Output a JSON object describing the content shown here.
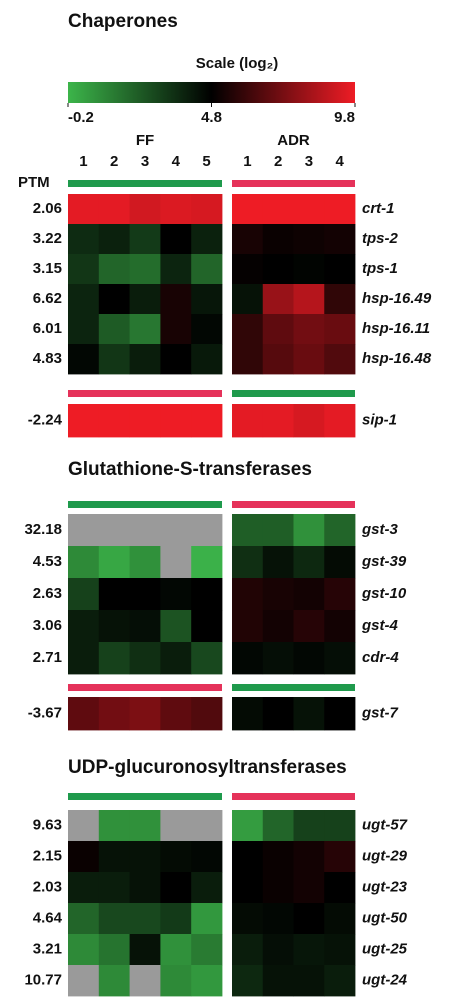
{
  "chart_data": {
    "type": "heatmap",
    "scale": {
      "title": "Scale (log₂)",
      "range": [
        -0.2,
        9.8
      ],
      "ticks": [
        -0.2,
        4.8,
        9.8
      ],
      "colors": [
        "#3cb54a",
        "#000000",
        "#ee1c25"
      ],
      "missing_color": "#9a9a9a"
    },
    "row_header": "PTM",
    "groups": [
      {
        "name": "FF",
        "columns": [
          "1",
          "2",
          "3",
          "4",
          "5"
        ]
      },
      {
        "name": "ADR",
        "columns": [
          "1",
          "2",
          "3",
          "4"
        ]
      }
    ],
    "sections": [
      {
        "title": "Chaperones",
        "blocks": [
          {
            "bar_colors": [
              "#1f9a4c",
              "#e5325a"
            ],
            "rows": [
              {
                "ptm": 2.06,
                "gene": "crt-1",
                "values": [
                  [
                    9.6,
                    9.6,
                    9.2,
                    9.4,
                    9.3
                  ],
                  [
                    9.8,
                    9.8,
                    9.8,
                    9.8
                  ]
                ]
              },
              {
                "ptm": 3.22,
                "gene": "tps-2",
                "values": [
                  [
                    3.6,
                    3.9,
                    3.2,
                    4.8,
                    3.9
                  ],
                  [
                    5.3,
                    5.0,
                    5.1,
                    5.2
                  ]
                ]
              },
              {
                "ptm": 3.15,
                "gene": "tps-1",
                "values": [
                  [
                    3.3,
                    2.0,
                    1.8,
                    3.8,
                    2.0
                  ],
                  [
                    4.9,
                    4.8,
                    4.7,
                    4.8
                  ]
                ]
              },
              {
                "ptm": 6.62,
                "gene": "hsp-16.49",
                "values": [
                  [
                    3.8,
                    4.8,
                    4.0,
                    5.3,
                    4.2
                  ],
                  [
                    4.3,
                    8.0,
                    8.6,
                    5.8
                  ]
                ]
              },
              {
                "ptm": 6.01,
                "gene": "hsp-16.11",
                "values": [
                  [
                    3.8,
                    2.3,
                    1.5,
                    5.3,
                    4.6
                  ],
                  [
                    5.8,
                    6.8,
                    7.2,
                    7.0
                  ]
                ]
              },
              {
                "ptm": 4.83,
                "gene": "hsp-16.48",
                "values": [
                  [
                    4.6,
                    3.3,
                    4.0,
                    4.8,
                    4.1
                  ],
                  [
                    5.8,
                    6.6,
                    7.0,
                    6.5
                  ]
                ]
              }
            ]
          },
          {
            "bar_colors": [
              "#e5325a",
              "#1f9a4c"
            ],
            "rows": [
              {
                "ptm": -2.24,
                "gene": "sip-1",
                "values": [
                  [
                    9.8,
                    9.8,
                    9.8,
                    9.8,
                    9.8
                  ],
                  [
                    9.6,
                    9.6,
                    9.3,
                    9.6
                  ]
                ]
              }
            ]
          }
        ]
      },
      {
        "title": "Glutathione-S-transferases",
        "blocks": [
          {
            "bar_colors": [
              "#1f9a4c",
              "#e5325a"
            ],
            "rows": [
              {
                "ptm": 32.18,
                "gene": "gst-3",
                "values": [
                  [
                    null,
                    null,
                    null,
                    null,
                    null
                  ],
                  [
                    2.2,
                    2.2,
                    0.8,
                    2.0
                  ]
                ]
              },
              {
                "ptm": 4.53,
                "gene": "gst-39",
                "values": [
                  [
                    1.0,
                    0.2,
                    0.8,
                    null,
                    -0.1
                  ],
                  [
                    3.5,
                    4.3,
                    3.7,
                    4.5
                  ]
                ]
              },
              {
                "ptm": 2.63,
                "gene": "gst-10",
                "values": [
                  [
                    3.0,
                    4.8,
                    4.8,
                    4.6,
                    4.8
                  ],
                  [
                    5.5,
                    5.3,
                    5.2,
                    5.6
                  ]
                ]
              },
              {
                "ptm": 3.06,
                "gene": "gst-4",
                "values": [
                  [
                    4.0,
                    4.3,
                    4.4,
                    2.5,
                    4.8
                  ],
                  [
                    5.5,
                    5.2,
                    5.6,
                    5.2
                  ]
                ]
              },
              {
                "ptm": 2.71,
                "gene": "cdr-4",
                "values": [
                  [
                    4.0,
                    3.0,
                    3.5,
                    4.0,
                    2.8
                  ],
                  [
                    4.6,
                    4.4,
                    4.6,
                    4.4
                  ]
                ]
              }
            ]
          },
          {
            "bar_colors": [
              "#e5325a",
              "#1f9a4c"
            ],
            "rows": [
              {
                "ptm": -3.67,
                "gene": "gst-7",
                "values": [
                  [
                    6.8,
                    7.2,
                    7.4,
                    6.8,
                    6.5
                  ],
                  [
                    4.5,
                    4.8,
                    4.3,
                    4.8
                  ]
                ]
              }
            ]
          }
        ]
      },
      {
        "title": "UDP-glucuronosyltransferases",
        "blocks": [
          {
            "bar_colors": [
              "#1f9a4c",
              "#e5325a"
            ],
            "rows": [
              {
                "ptm": 9.63,
                "gene": "ugt-57",
                "values": [
                  [
                    null,
                    0.8,
                    0.8,
                    null,
                    null
                  ],
                  [
                    0.5,
                    2.0,
                    3.0,
                    3.0
                  ]
                ]
              },
              {
                "ptm": 2.15,
                "gene": "ugt-29",
                "values": [
                  [
                    5.0,
                    4.3,
                    4.3,
                    4.5,
                    4.6
                  ],
                  [
                    4.8,
                    5.0,
                    5.2,
                    5.6
                  ]
                ]
              },
              {
                "ptm": 2.03,
                "gene": "ugt-23",
                "values": [
                  [
                    4.0,
                    4.0,
                    4.3,
                    4.8,
                    4.0
                  ],
                  [
                    4.8,
                    5.0,
                    5.2,
                    4.8
                  ]
                ]
              },
              {
                "ptm": 4.64,
                "gene": "ugt-50",
                "values": [
                  [
                    2.0,
                    2.8,
                    2.8,
                    3.2,
                    0.6
                  ],
                  [
                    4.5,
                    4.6,
                    4.8,
                    4.5
                  ]
                ]
              },
              {
                "ptm": 3.21,
                "gene": "ugt-25",
                "values": [
                  [
                    1.0,
                    1.6,
                    4.3,
                    0.8,
                    1.4
                  ],
                  [
                    4.0,
                    4.4,
                    4.2,
                    4.3
                  ]
                ]
              },
              {
                "ptm": 10.77,
                "gene": "ugt-24",
                "values": [
                  [
                    null,
                    1.0,
                    null,
                    1.0,
                    0.6
                  ],
                  [
                    3.7,
                    4.3,
                    4.3,
                    4.0
                  ]
                ]
              }
            ]
          }
        ]
      }
    ]
  }
}
